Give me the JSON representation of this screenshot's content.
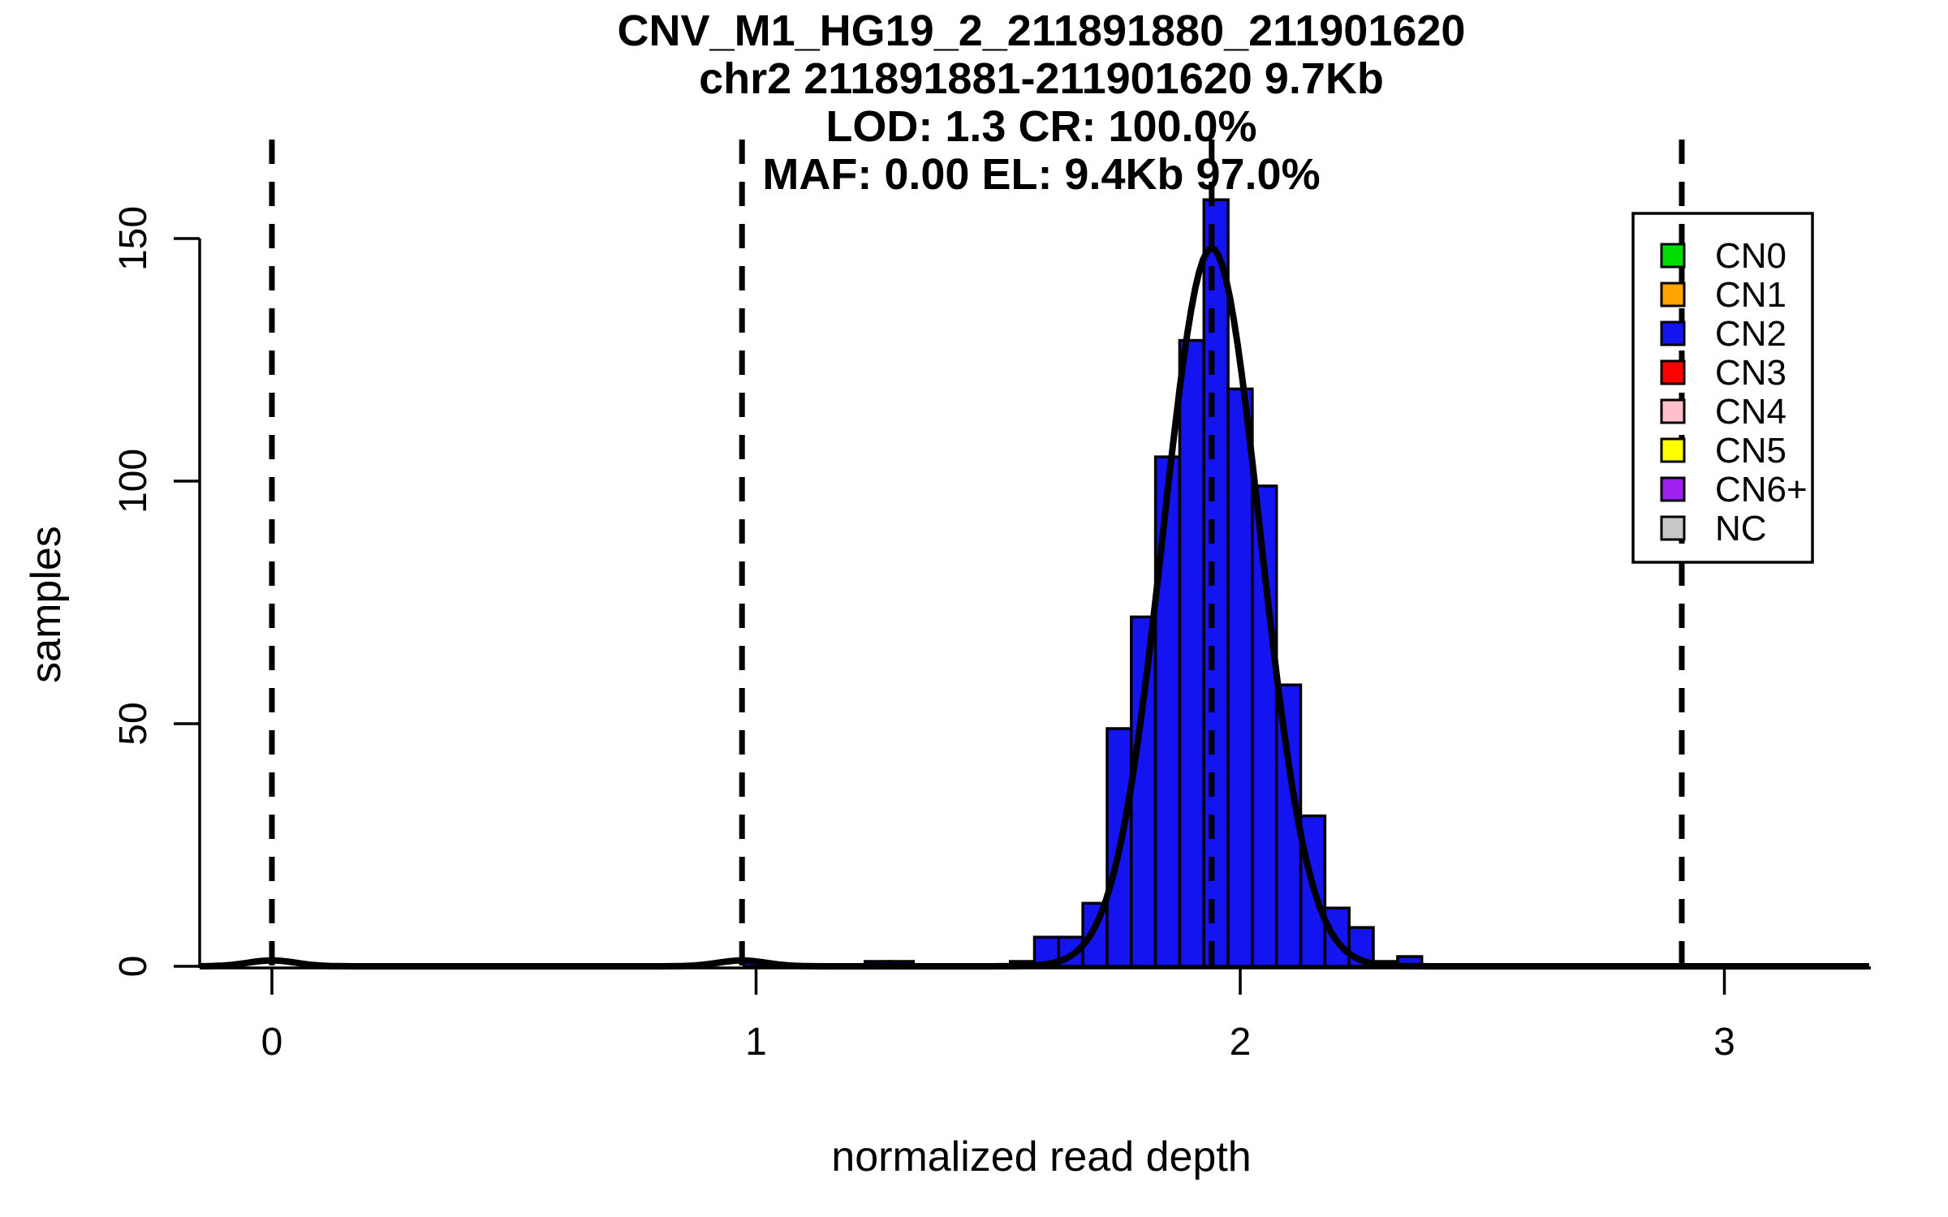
{
  "title": {
    "line1": "CNV_M1_HG19_2_211891880_211901620",
    "line2": "chr2 211891881-211901620 9.7Kb",
    "line3": "LOD: 1.3 CR: 100.0%",
    "line4": "MAF: 0.00 EL: 9.4Kb 97.0%"
  },
  "axes": {
    "x_label": "normalized read depth",
    "y_label": "samples"
  },
  "chart_data": {
    "type": "bar",
    "subtype": "histogram",
    "title": "CNV_M1_HG19_2_211891880_211901620 / chr2 211891881-211901620 9.7Kb / LOD: 1.3 CR: 100.0% / MAF: 0.00 EL: 9.4Kb 97.0%",
    "xlabel": "normalized read depth",
    "ylabel": "samples",
    "xlim": [
      -0.15,
      3.33
    ],
    "ylim": [
      0,
      170
    ],
    "x_ticks": [
      0,
      1,
      2,
      3
    ],
    "y_ticks": [
      0,
      50,
      100,
      150
    ],
    "grid": false,
    "bin_width": 0.05,
    "bin_centers": [
      1.0,
      1.25,
      1.3,
      1.55,
      1.6,
      1.65,
      1.7,
      1.75,
      1.8,
      1.85,
      1.9,
      1.95,
      2.0,
      2.05,
      2.1,
      2.15,
      2.2,
      2.25,
      2.3,
      2.35
    ],
    "counts": [
      1,
      1,
      1,
      1,
      6,
      6,
      13,
      49,
      72,
      105,
      129,
      158,
      119,
      99,
      58,
      31,
      12,
      8,
      1,
      2
    ],
    "fit_curve": {
      "type": "gaussian-mixture",
      "components": [
        {
          "mean": 0.0,
          "sd": 0.05,
          "peak": 1.2
        },
        {
          "mean": 0.971,
          "sd": 0.05,
          "peak": 1.2
        },
        {
          "mean": 1.941,
          "sd": 0.1,
          "peak": 148
        }
      ]
    },
    "dashed_vlines": {
      "values": [
        0,
        0.971,
        1.941,
        2.912
      ],
      "meaning": [
        "CN0",
        "CN1",
        "CN2",
        "CN3"
      ]
    },
    "colors": {
      "bar_fill": "#1414f0",
      "curve": "#000000",
      "vline": "#000000",
      "axis": "#000000"
    },
    "legend": {
      "position": "top-right",
      "items": [
        {
          "label": "CN0",
          "color": "#00dd00"
        },
        {
          "label": "CN1",
          "color": "#ffa500"
        },
        {
          "label": "CN2",
          "color": "#1414f0"
        },
        {
          "label": "CN3",
          "color": "#ff0000"
        },
        {
          "label": "CN4",
          "color": "#ffc0cb"
        },
        {
          "label": "CN5",
          "color": "#ffff00"
        },
        {
          "label": "CN6+",
          "color": "#a020f0"
        },
        {
          "label": "NC",
          "color": "#c8c8c8"
        }
      ]
    }
  }
}
